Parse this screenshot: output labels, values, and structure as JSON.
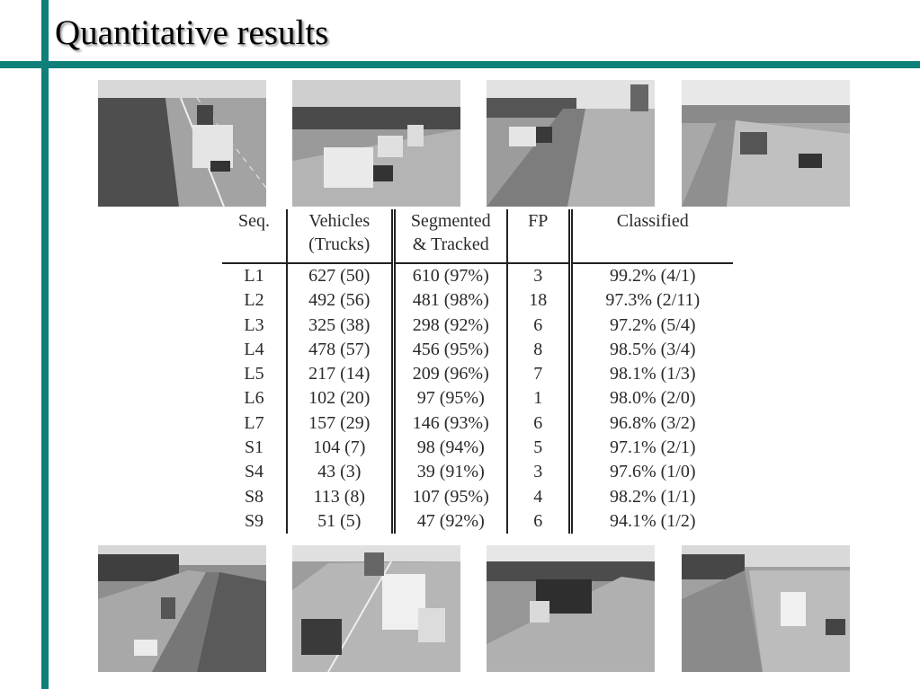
{
  "slide": {
    "title": "Quantitative results"
  },
  "photos": [
    {
      "name": "highway-photo-top-1"
    },
    {
      "name": "highway-photo-top-2"
    },
    {
      "name": "highway-photo-top-3"
    },
    {
      "name": "highway-photo-top-4"
    },
    {
      "name": "highway-photo-bottom-1"
    },
    {
      "name": "highway-photo-bottom-2"
    },
    {
      "name": "highway-photo-bottom-3"
    },
    {
      "name": "highway-photo-bottom-4"
    }
  ],
  "table": {
    "headers": {
      "seq": "Seq.",
      "vehicles_line1": "Vehicles",
      "vehicles_line2": "(Trucks)",
      "segmented_line1": "Segmented",
      "segmented_line2": "& Tracked",
      "fp": "FP",
      "classified": "Classified"
    },
    "rows": [
      {
        "seq": "L1",
        "vehicles": "627 (50)",
        "segmented": "610 (97%)",
        "fp": "3",
        "classified": "99.2% (4/1)"
      },
      {
        "seq": "L2",
        "vehicles": "492 (56)",
        "segmented": "481 (98%)",
        "fp": "18",
        "classified": "97.3% (2/11)"
      },
      {
        "seq": "L3",
        "vehicles": "325 (38)",
        "segmented": "298 (92%)",
        "fp": "6",
        "classified": "97.2% (5/4)"
      },
      {
        "seq": "L4",
        "vehicles": "478 (57)",
        "segmented": "456 (95%)",
        "fp": "8",
        "classified": "98.5% (3/4)"
      },
      {
        "seq": "L5",
        "vehicles": "217 (14)",
        "segmented": "209 (96%)",
        "fp": "7",
        "classified": "98.1% (1/3)"
      },
      {
        "seq": "L6",
        "vehicles": "102 (20)",
        "segmented": "97 (95%)",
        "fp": "1",
        "classified": "98.0% (2/0)"
      },
      {
        "seq": "L7",
        "vehicles": "157 (29)",
        "segmented": "146 (93%)",
        "fp": "6",
        "classified": "96.8% (3/2)"
      },
      {
        "seq": "S1",
        "vehicles": "104 (7)",
        "segmented": "98 (94%)",
        "fp": "5",
        "classified": "97.1% (2/1)"
      },
      {
        "seq": "S4",
        "vehicles": "43 (3)",
        "segmented": "39 (91%)",
        "fp": "3",
        "classified": "97.6% (1/0)"
      },
      {
        "seq": "S8",
        "vehicles": "113 (8)",
        "segmented": "107 (95%)",
        "fp": "4",
        "classified": "98.2% (1/1)"
      },
      {
        "seq": "S9",
        "vehicles": "51 (5)",
        "segmented": "47 (92%)",
        "fp": "6",
        "classified": "94.1% (1/2)"
      }
    ]
  }
}
